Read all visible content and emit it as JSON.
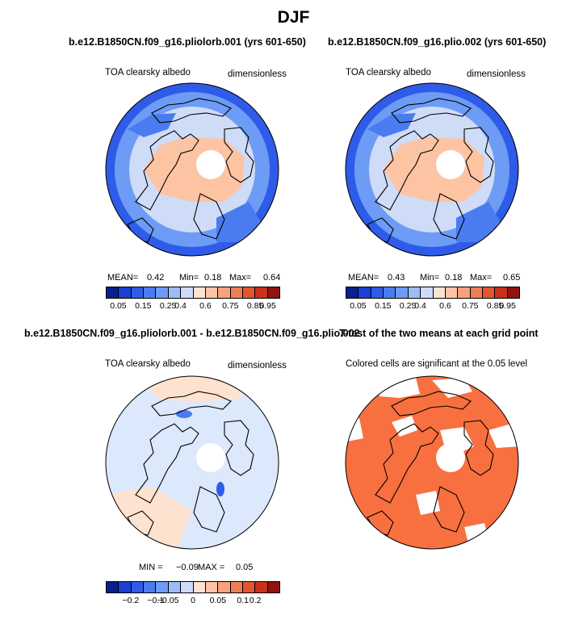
{
  "figure": {
    "title": "DJF"
  },
  "panels": {
    "p1": {
      "title": "b.e12.B1850CN.f09_g16.pliolorb.001 (yrs 601-650)",
      "var": "TOA clearsky albedo",
      "units": "dimensionless",
      "stats": {
        "mean_label": "MEAN=",
        "mean": "0.42",
        "min_label": "Min=",
        "min": "0.18",
        "max_label": "Max=",
        "max": "0.64"
      }
    },
    "p2": {
      "title": "b.e12.B1850CN.f09_g16.plio.002 (yrs 601-650)",
      "var": "TOA clearsky albedo",
      "units": "dimensionless",
      "stats": {
        "mean_label": "MEAN=",
        "mean": "0.43",
        "min_label": "Min=",
        "min": "0.18",
        "max_label": "Max=",
        "max": "0.65"
      }
    },
    "p3": {
      "title": "b.e12.B1850CN.f09_g16.pliolorb.001 - b.e12.B1850CN.f09_g16.plio.002",
      "var": "TOA clearsky albedo",
      "units": "dimensionless",
      "stats": {
        "min_label": "MIN =",
        "min": "−0.09",
        "max_label": "MAX =",
        "max": "0.05"
      }
    },
    "p4": {
      "title": "T-test of the two means at each grid point",
      "subtitle": "Colored cells are significant at the 0.05 level"
    }
  },
  "colorbars": {
    "albedo": {
      "colors": [
        "#08208f",
        "#1a3fd2",
        "#2e5ce8",
        "#4a7cf0",
        "#6d9bf5",
        "#9dbcf7",
        "#cfdcf7",
        "#fde2d0",
        "#fcc4a3",
        "#f7a27b",
        "#f07e55",
        "#e3562f",
        "#c9321a",
        "#8f1410"
      ],
      "ticks": [
        "0.05",
        "0.15",
        "0.25",
        "0.4",
        "0.6",
        "0.75",
        "0.85",
        "0.95"
      ]
    },
    "diff": {
      "colors": [
        "#08208f",
        "#1a3fd2",
        "#2e5ce8",
        "#4a7cf0",
        "#6d9bf5",
        "#9dbcf7",
        "#cfdcf7",
        "#fde2d0",
        "#fcc4a3",
        "#f7a27b",
        "#f07e55",
        "#e3562f",
        "#c9321a",
        "#8f1410"
      ],
      "ticks": [
        "−0.2",
        "−0.1",
        "−0.05",
        "0",
        "0.05",
        "0.1",
        "0.2"
      ]
    }
  },
  "chart_data": [
    {
      "type": "heatmap",
      "projection": "north polar stereographic",
      "title": "b.e12.B1850CN.f09_g16.pliolorb.001 (yrs 601-650)",
      "variable": "TOA clearsky albedo",
      "units": "dimensionless",
      "mean": 0.42,
      "min": 0.18,
      "max": 0.64,
      "contour_levels": [
        0.05,
        0.1,
        0.15,
        0.2,
        0.25,
        0.3,
        0.4,
        0.5,
        0.6,
        0.65,
        0.75,
        0.8,
        0.85,
        0.9,
        0.95
      ]
    },
    {
      "type": "heatmap",
      "projection": "north polar stereographic",
      "title": "b.e12.B1850CN.f09_g16.plio.002 (yrs 601-650)",
      "variable": "TOA clearsky albedo",
      "units": "dimensionless",
      "mean": 0.43,
      "min": 0.18,
      "max": 0.65,
      "contour_levels": [
        0.05,
        0.1,
        0.15,
        0.2,
        0.25,
        0.3,
        0.4,
        0.5,
        0.6,
        0.65,
        0.75,
        0.8,
        0.85,
        0.9,
        0.95
      ]
    },
    {
      "type": "heatmap",
      "projection": "north polar stereographic",
      "title": "b.e12.B1850CN.f09_g16.pliolorb.001 - b.e12.B1850CN.f09_g16.plio.002",
      "variable": "TOA clearsky albedo",
      "units": "dimensionless",
      "min": -0.09,
      "max": 0.05,
      "contour_levels": [
        -0.2,
        -0.15,
        -0.1,
        -0.075,
        -0.05,
        -0.025,
        0,
        0.025,
        0.05,
        0.075,
        0.1,
        0.15,
        0.2
      ]
    },
    {
      "type": "heatmap",
      "projection": "north polar stereographic",
      "title": "T-test of the two means at each grid point",
      "subtitle": "Colored cells are significant at the 0.05 level",
      "significance_level": 0.05,
      "significant_color": "#f87040"
    }
  ]
}
